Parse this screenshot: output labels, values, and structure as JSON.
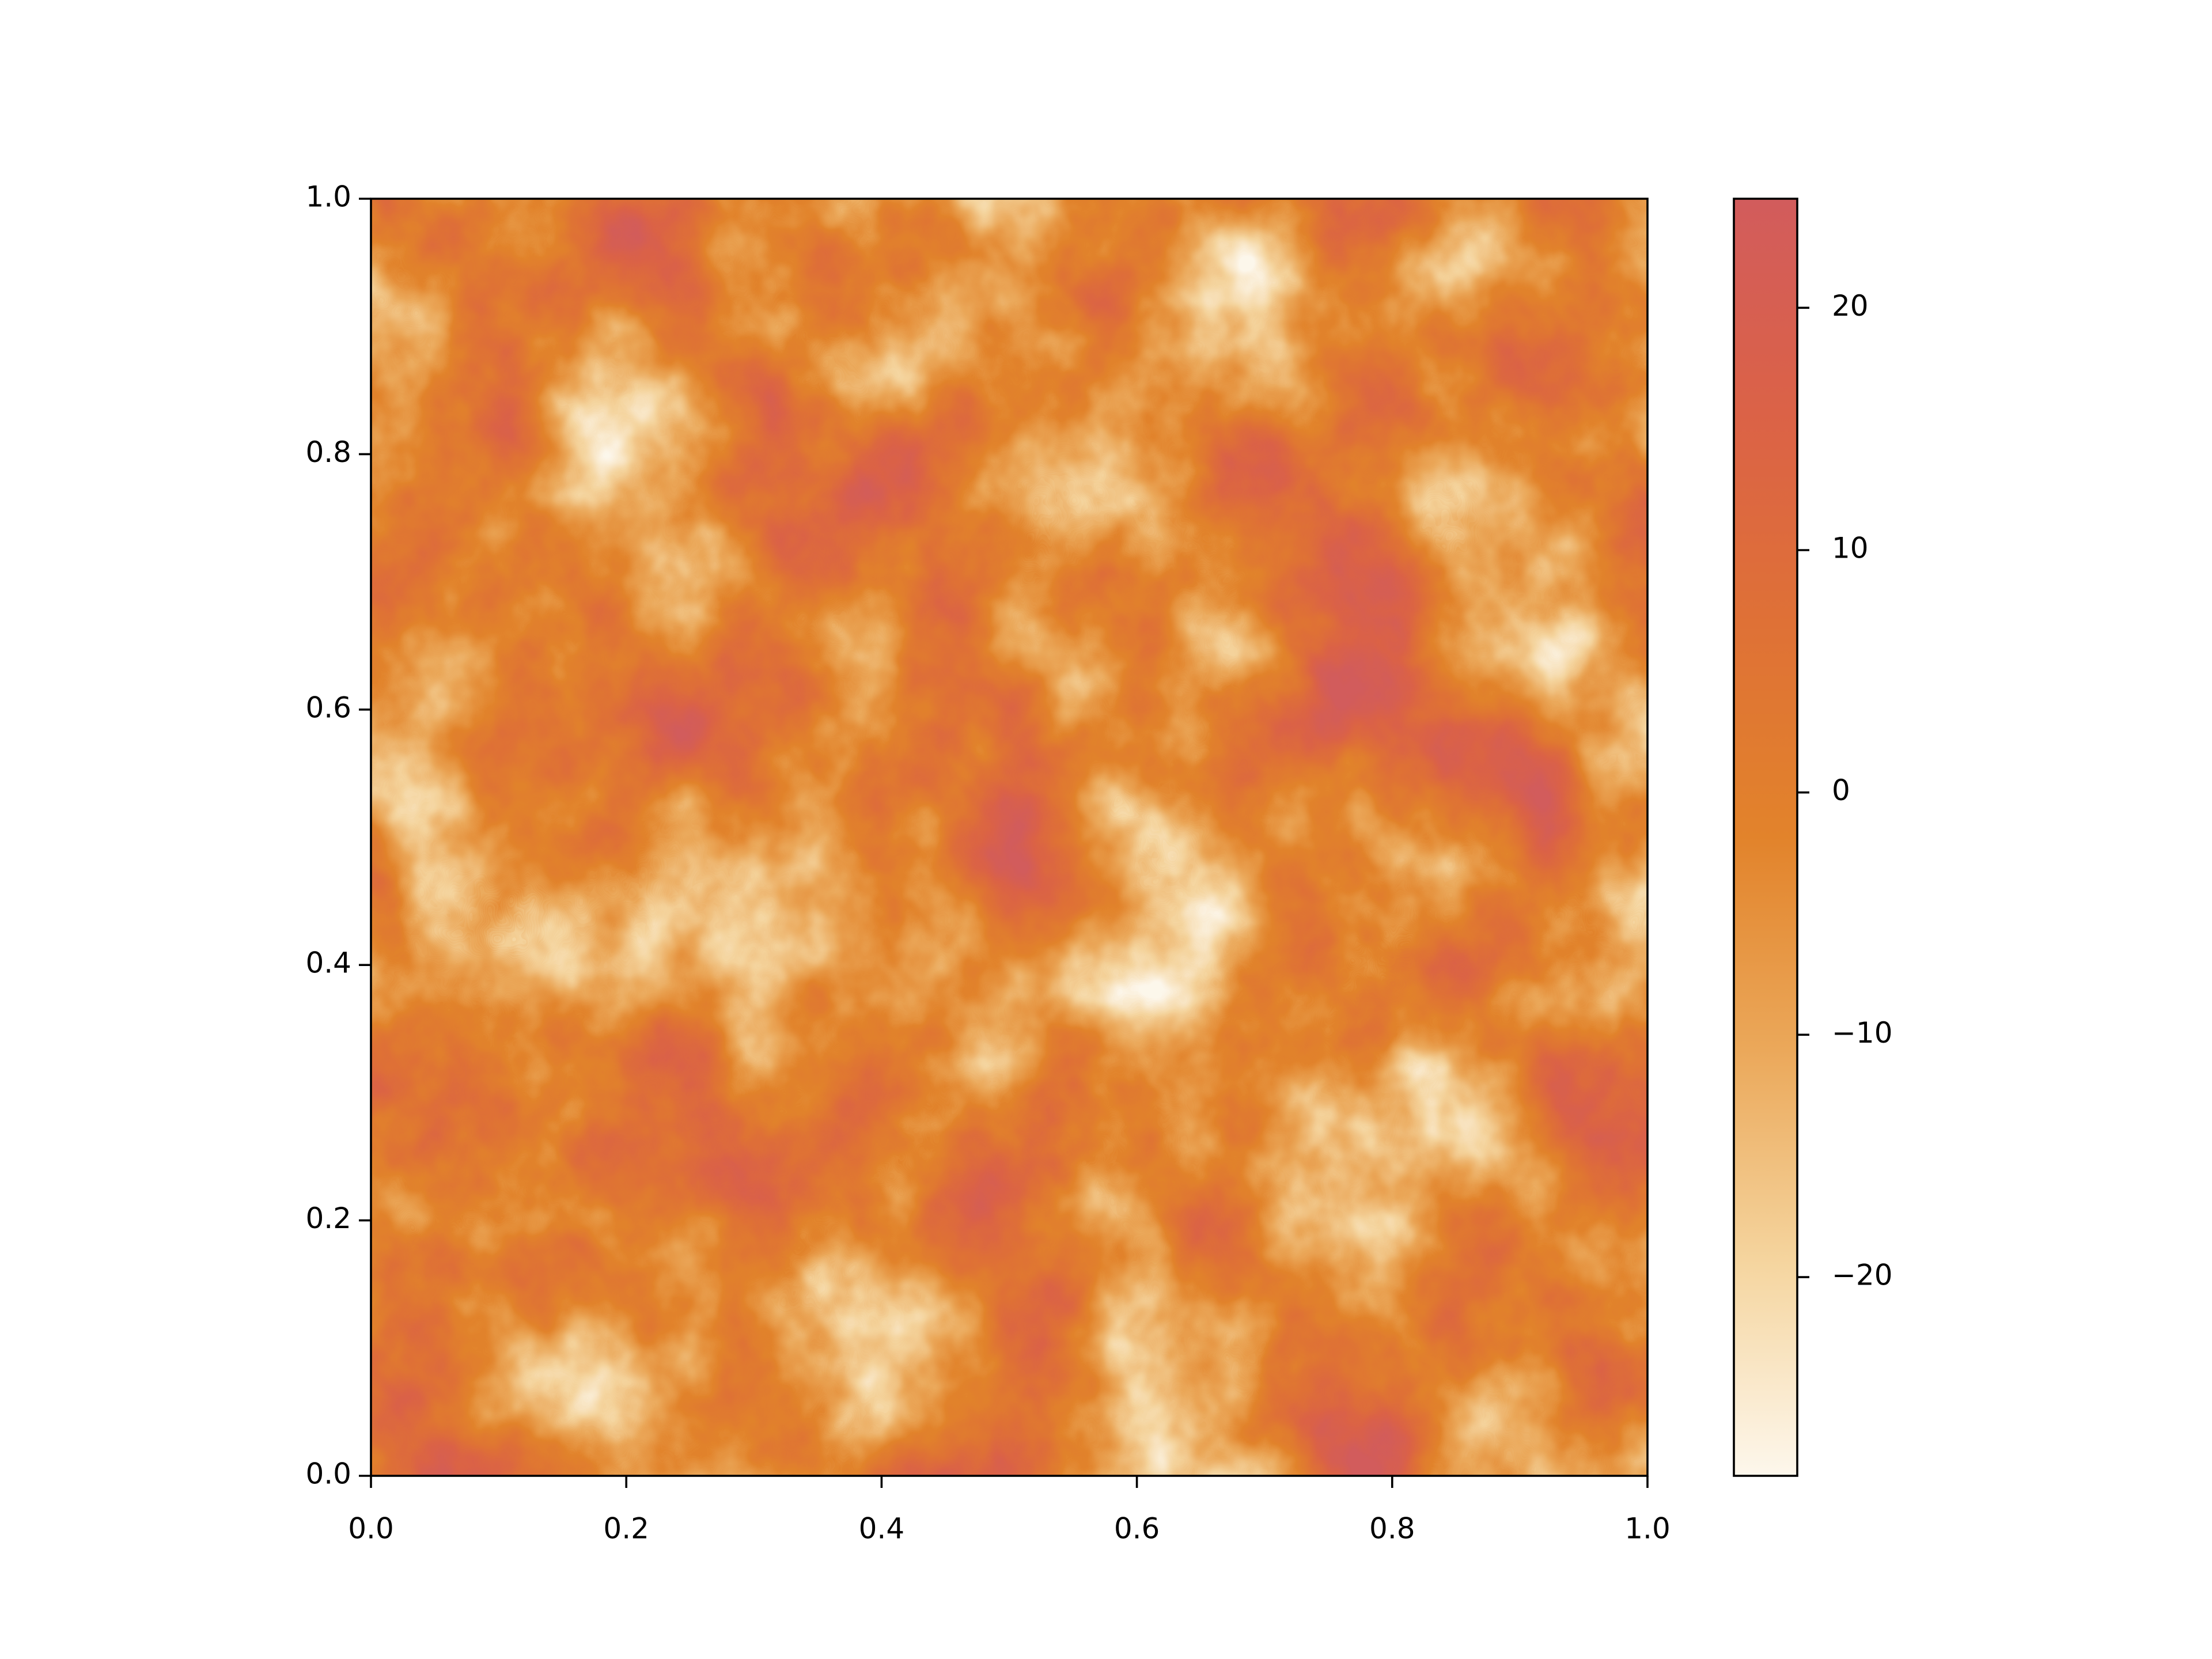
{
  "chart_data": {
    "type": "heatmap",
    "xlim": [
      0,
      1
    ],
    "ylim": [
      0,
      1
    ],
    "xticks": [
      {
        "value": 0,
        "label": "0.0"
      },
      0.2,
      0.4,
      0.6,
      0.8,
      {
        "value": 1,
        "label": "1.0"
      }
    ],
    "yticks": [
      {
        "value": 0,
        "label": "0.0"
      },
      0.2,
      0.4,
      0.6,
      0.8,
      {
        "value": 1,
        "label": "1.0"
      }
    ],
    "colorbar": {
      "clim": [
        -28.2,
        24.5
      ],
      "ticks": [
        {
          "value": -20,
          "label": "−20"
        },
        {
          "value": -10,
          "label": "−10"
        },
        0,
        10,
        20
      ],
      "colors": [
        "#fdf7ec",
        "#f5d59f",
        "#eba85a",
        "#e2832b",
        "#df7136",
        "#db6247",
        "#d25c5c"
      ]
    }
  }
}
